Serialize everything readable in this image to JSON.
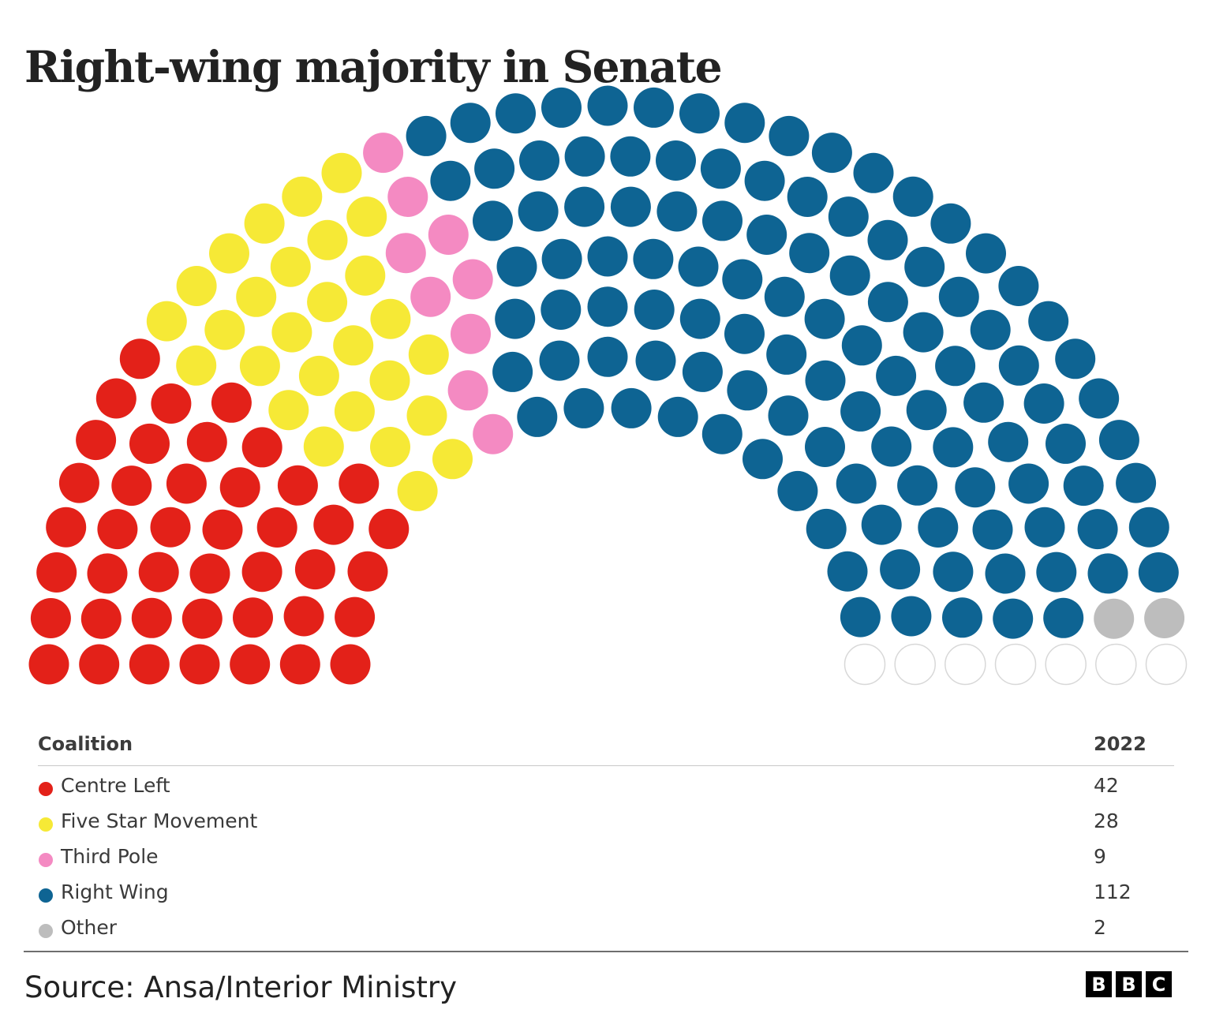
{
  "title": "Right-wing majority in Senate",
  "chart_data": {
    "type": "hemicycle",
    "title": "Right-wing majority in Senate",
    "total_seats": 200,
    "series": [
      {
        "name": "Centre Left",
        "values": [
          42
        ],
        "color": "#e32119"
      },
      {
        "name": "Five Star Movement",
        "values": [
          28
        ],
        "color": "#f6e936"
      },
      {
        "name": "Third Pole",
        "values": [
          9
        ],
        "color": "#f48ac2"
      },
      {
        "name": "Right Wing",
        "values": [
          112
        ],
        "color": "#0e6493"
      },
      {
        "name": "Other",
        "values": [
          2
        ],
        "color": "#bdbdbd"
      }
    ],
    "undeclared_seats": 7
  },
  "legend": {
    "header": {
      "name": "Coalition",
      "year": "2022"
    },
    "rows": [
      {
        "name": "Centre Left",
        "seats": "42"
      },
      {
        "name": "Five Star Movement",
        "seats": "28"
      },
      {
        "name": "Third Pole",
        "seats": "9"
      },
      {
        "name": "Right Wing",
        "seats": "112"
      },
      {
        "name": "Other",
        "seats": "2"
      }
    ]
  },
  "footer": {
    "source": "Source: Ansa/Interior Ministry",
    "logo_letters": [
      "B",
      "B",
      "C"
    ]
  }
}
